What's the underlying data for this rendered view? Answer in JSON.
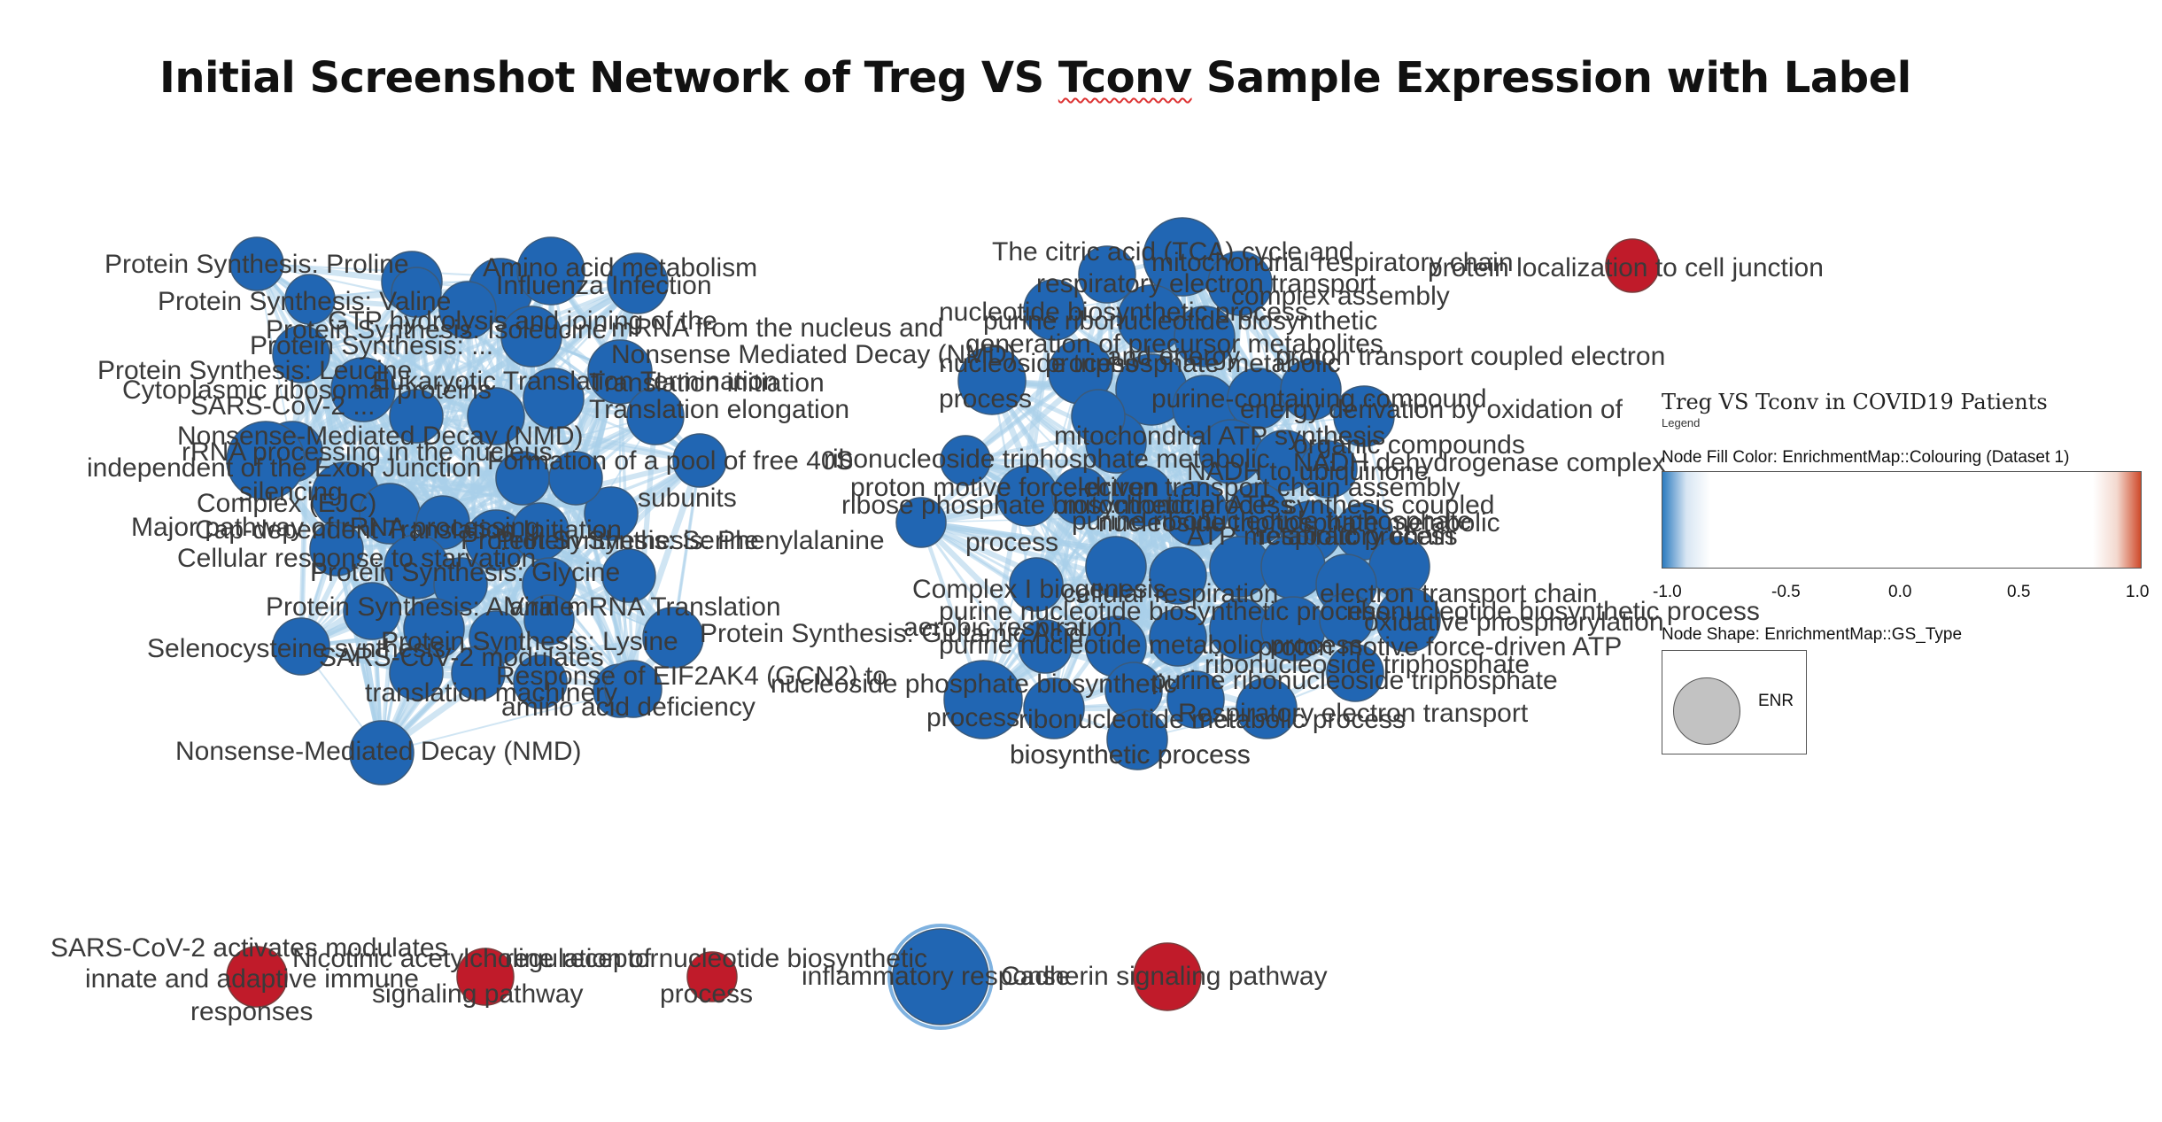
{
  "title_prefix": "Initial Screenshot Network of Treg VS ",
  "title_tconv": "Tconv",
  "title_suffix": " Sample Expression with Label",
  "colors": {
    "enriched_down": "#2166b3",
    "enriched_up": "#c01b2a",
    "edge": "#a9d0ea"
  },
  "legend": {
    "title": "Treg VS Tconv in COVID19 Patients",
    "subtitle": "Legend",
    "fill_heading": "Node Fill Color:  EnrichmentMap::Colouring (Dataset 1)",
    "ticks": [
      "-1.0",
      "-0.5",
      "0.0",
      "0.5",
      "1.0"
    ],
    "shape_heading": "Node Shape:  EnrichmentMap::GS_Type",
    "shape_label": "ENR"
  },
  "clusters": {
    "left": {
      "labels": [
        "Protein Synthesis: Proline",
        "Protein Synthesis: Valine",
        "Protein Synthesis: ...",
        "Amino acid metabolism",
        "Influenza Infection",
        "GTP hydrolysis and joining of the",
        "Protein Synthesis: Isoleucine",
        "mRNA from the nucleus and",
        "Nonsense Mediated Decay (NMD)",
        "Protein Synthesis: Leucine",
        "Cytoplasmic ribosomal proteins",
        "Eukaryotic Translation Termination",
        "Translation initiation",
        "Translation elongation",
        "SARS-CoV-2 ...",
        "Nonsense-Mediated Decay (NMD)",
        "independent of the Exon Junction",
        "rRNA processing in the nucleus",
        "Formation of a pool of free 40S",
        "subunits",
        "Complex (EJC)",
        "silencing",
        "Cap-dependent Translation Initiation",
        "Major pathway of rRNA processing",
        "Cellular response to starvation",
        "Protein Synthesis: Serine",
        "Protein Synthesis: Phenylalanine",
        "Protein Synthesis: Glycine",
        "Protein Synthesis: Alanine",
        "Viral mRNA Translation",
        "Protein Synthesis: Glutamic Acid",
        "Selenocysteine synthesis",
        "Protein Synthesis: Lysine",
        "SARS-CoV-2 modulates",
        "Response of EIF2AK4 (GCN2) to",
        "amino acid deficiency",
        "translation machinery",
        "Nonsense-Mediated Decay (NMD)"
      ]
    },
    "right": {
      "labels": [
        "The citric acid (TCA) cycle and",
        "respiratory electron transport",
        "mitochondrial respiratory chain",
        "complex assembly",
        "nucleotide biosynthetic process",
        "purine ribonucleotide biosynthetic",
        "generation of precursor metabolites",
        "and energy",
        "process",
        "nucleoside triphosphate metabolic",
        "process",
        "proton transport coupled electron",
        "purine-containing compound",
        "energy derivation by oxidation of",
        "organic compounds",
        "mitochondrial ATP synthesis",
        "NADH dehydrogenase complex",
        "NADH to ubiquinone",
        "ribonucleoside triphosphate metabolic",
        "proton motive force-driven",
        "ribose phosphate biosynthetic process",
        "electron transport chain assembly",
        "mitochondrial ATP synthesis coupled",
        "nucleoside triphosphate metabolic",
        "purine ribonucleotide triphosphate",
        "process",
        "Complex I biogenesis",
        "purine nucleotide biosynthetic process",
        "aerobic respiration",
        "cellular respiration",
        "ATP metabolic process",
        "respiratory chain",
        "electron transport chain",
        "oxidative phosphorylation",
        "ribonucleotide biosynthetic process",
        "proton motive force-driven ATP",
        "ribonucleoside triphosphate",
        "purine nucleotide metabolic process",
        "nucleoside phosphate biosynthetic",
        "process",
        "purine ribonucleoside triphosphate",
        "biosynthetic process",
        "Respiratory electron transport",
        "ribonucleotide metabolic process",
        "biosynthetic process"
      ]
    },
    "singletons": [
      {
        "label": "protein localization to cell junction"
      },
      {
        "label": "SARS-CoV-2 activates modulates",
        "label2": "innate and adaptive immune",
        "label3": "responses"
      },
      {
        "label": "Nicotinic acetylcholine receptor",
        "label2": "signaling pathway"
      },
      {
        "label": "regulation of nucleotide biosynthetic",
        "label2": "process"
      },
      {
        "label": "inflammatory response"
      },
      {
        "label": "Cadherin signaling pathway"
      }
    ]
  }
}
